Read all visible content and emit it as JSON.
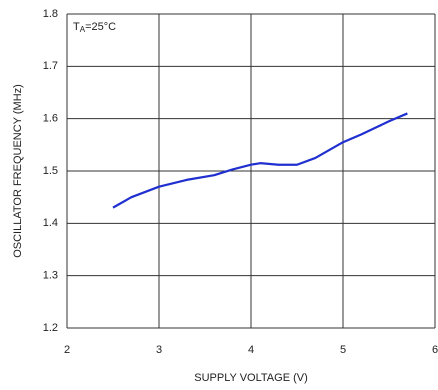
{
  "chart_data": {
    "type": "line",
    "annotation": {
      "main": "T",
      "sub": "A",
      "rest": "=25°C"
    },
    "x_label": "SUPPLY VOLTAGE (V)",
    "y_label": "OSCILLATOR FREQUENCY (MHz)",
    "xlim": [
      2,
      6
    ],
    "xticks": [
      2,
      3,
      4,
      5,
      6
    ],
    "ylim": [
      1.2,
      1.8
    ],
    "yticks": [
      1.2,
      1.3,
      1.4,
      1.5,
      1.6,
      1.7,
      1.8
    ],
    "grid": true,
    "x": [
      2.5,
      2.7,
      3.0,
      3.3,
      3.6,
      3.8,
      4.0,
      4.1,
      4.3,
      4.5,
      4.7,
      5.0,
      5.2,
      5.5,
      5.7
    ],
    "series": [
      {
        "color": "#2030d0",
        "values": [
          1.43,
          1.45,
          1.47,
          1.483,
          1.492,
          1.503,
          1.512,
          1.515,
          1.512,
          1.512,
          1.525,
          1.555,
          1.57,
          1.595,
          1.61
        ]
      }
    ]
  }
}
